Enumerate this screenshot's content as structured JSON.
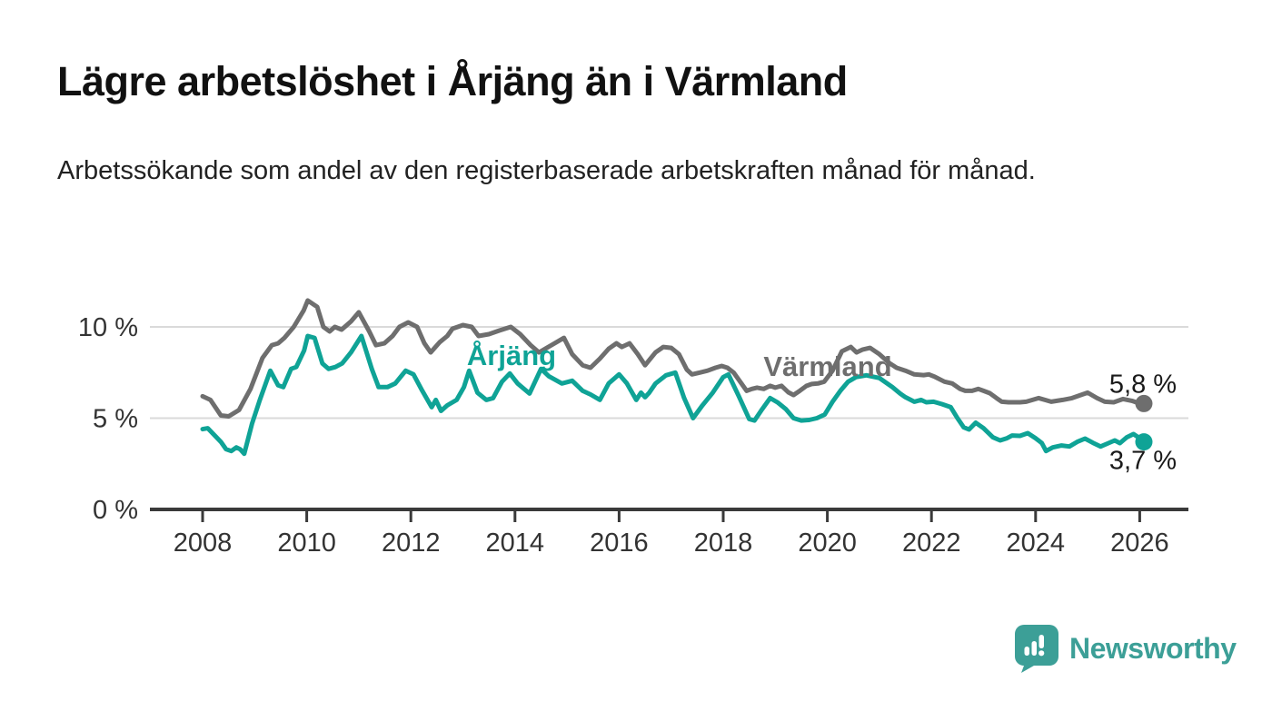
{
  "header": {
    "title": "Lägre arbetslöshet i Årjäng än i Värmland",
    "subtitle": "Arbetssökande som andel av den registerbaserade arbetskraften månad för månad."
  },
  "branding": {
    "logo_text": "Newsworthy",
    "logo_icon": "bar-chart-speech-bubble-icon",
    "brand_color": "#3C9F97"
  },
  "chart_data": {
    "type": "line",
    "title": "Lägre arbetslöshet i Årjäng än i Värmland",
    "subtitle": "Arbetssökande som andel av den registerbaserade arbetskraften månad för månad.",
    "xlabel": "",
    "ylabel": "",
    "x_unit": "year",
    "y_unit": "%",
    "xlim": [
      2007.0,
      2026.9
    ],
    "ylim": [
      0,
      12.2
    ],
    "grid": "horizontal-only",
    "legend_position": "inline-labels",
    "grid_color": "#DADADA",
    "axis_color": "#3A3A3A",
    "tick_text_color": "#333333",
    "x_ticks": [
      2008,
      2010,
      2012,
      2014,
      2016,
      2018,
      2020,
      2022,
      2024,
      2026
    ],
    "y_ticks": [
      {
        "value": 0,
        "label": "0 %"
      },
      {
        "value": 5,
        "label": "5 %"
      },
      {
        "value": 10,
        "label": "10 %"
      }
    ],
    "series": [
      {
        "name": "Värmland",
        "color": "#6E6E6E",
        "end_label": "5,8 %",
        "end_value": 5.8,
        "points": [
          [
            2008.0,
            6.2
          ],
          [
            2008.15,
            6.0
          ],
          [
            2008.35,
            5.15
          ],
          [
            2008.5,
            5.1
          ],
          [
            2008.7,
            5.45
          ],
          [
            2008.92,
            6.6
          ],
          [
            2009.15,
            8.3
          ],
          [
            2009.33,
            9.0
          ],
          [
            2009.45,
            9.1
          ],
          [
            2009.57,
            9.4
          ],
          [
            2009.75,
            10.0
          ],
          [
            2009.94,
            10.9
          ],
          [
            2010.02,
            11.45
          ],
          [
            2010.2,
            11.1
          ],
          [
            2010.32,
            10.0
          ],
          [
            2010.44,
            9.75
          ],
          [
            2010.54,
            10.0
          ],
          [
            2010.67,
            9.85
          ],
          [
            2010.85,
            10.3
          ],
          [
            2011.0,
            10.8
          ],
          [
            2011.2,
            9.75
          ],
          [
            2011.33,
            9.0
          ],
          [
            2011.49,
            9.1
          ],
          [
            2011.65,
            9.5
          ],
          [
            2011.78,
            10.0
          ],
          [
            2011.95,
            10.25
          ],
          [
            2012.12,
            10.0
          ],
          [
            2012.26,
            9.1
          ],
          [
            2012.38,
            8.6
          ],
          [
            2012.55,
            9.15
          ],
          [
            2012.7,
            9.5
          ],
          [
            2012.8,
            9.9
          ],
          [
            2013.0,
            10.1
          ],
          [
            2013.17,
            10.0
          ],
          [
            2013.3,
            9.5
          ],
          [
            2013.5,
            9.6
          ],
          [
            2013.7,
            9.8
          ],
          [
            2013.92,
            10.0
          ],
          [
            2014.1,
            9.6
          ],
          [
            2014.3,
            9.0
          ],
          [
            2014.46,
            8.6
          ],
          [
            2014.7,
            9.0
          ],
          [
            2014.94,
            9.4
          ],
          [
            2015.1,
            8.5
          ],
          [
            2015.3,
            7.9
          ],
          [
            2015.45,
            7.76
          ],
          [
            2015.63,
            8.26
          ],
          [
            2015.8,
            8.8
          ],
          [
            2015.95,
            9.1
          ],
          [
            2016.05,
            8.9
          ],
          [
            2016.2,
            9.1
          ],
          [
            2016.36,
            8.5
          ],
          [
            2016.5,
            7.9
          ],
          [
            2016.7,
            8.6
          ],
          [
            2016.85,
            8.9
          ],
          [
            2017.0,
            8.85
          ],
          [
            2017.15,
            8.5
          ],
          [
            2017.3,
            7.66
          ],
          [
            2017.4,
            7.4
          ],
          [
            2017.55,
            7.5
          ],
          [
            2017.7,
            7.6
          ],
          [
            2017.85,
            7.76
          ],
          [
            2017.97,
            7.86
          ],
          [
            2018.08,
            7.76
          ],
          [
            2018.2,
            7.5
          ],
          [
            2018.3,
            7.1
          ],
          [
            2018.45,
            6.5
          ],
          [
            2018.55,
            6.6
          ],
          [
            2018.65,
            6.67
          ],
          [
            2018.78,
            6.6
          ],
          [
            2018.9,
            6.77
          ],
          [
            2019.0,
            6.67
          ],
          [
            2019.12,
            6.77
          ],
          [
            2019.25,
            6.42
          ],
          [
            2019.35,
            6.27
          ],
          [
            2019.47,
            6.5
          ],
          [
            2019.6,
            6.77
          ],
          [
            2019.7,
            6.87
          ],
          [
            2019.82,
            6.9
          ],
          [
            2019.94,
            7.0
          ],
          [
            2020.1,
            7.6
          ],
          [
            2020.28,
            8.66
          ],
          [
            2020.45,
            8.9
          ],
          [
            2020.56,
            8.6
          ],
          [
            2020.68,
            8.76
          ],
          [
            2020.82,
            8.85
          ],
          [
            2021.0,
            8.5
          ],
          [
            2021.2,
            8.0
          ],
          [
            2021.33,
            7.76
          ],
          [
            2021.5,
            7.6
          ],
          [
            2021.67,
            7.4
          ],
          [
            2021.85,
            7.36
          ],
          [
            2021.95,
            7.4
          ],
          [
            2022.07,
            7.26
          ],
          [
            2022.25,
            7.0
          ],
          [
            2022.4,
            6.9
          ],
          [
            2022.55,
            6.6
          ],
          [
            2022.65,
            6.5
          ],
          [
            2022.78,
            6.5
          ],
          [
            2022.9,
            6.6
          ],
          [
            2023.0,
            6.5
          ],
          [
            2023.12,
            6.37
          ],
          [
            2023.25,
            6.1
          ],
          [
            2023.35,
            5.9
          ],
          [
            2023.48,
            5.87
          ],
          [
            2023.6,
            5.87
          ],
          [
            2023.7,
            5.87
          ],
          [
            2023.82,
            5.9
          ],
          [
            2023.94,
            6.0
          ],
          [
            2024.06,
            6.1
          ],
          [
            2024.18,
            6.0
          ],
          [
            2024.3,
            5.9
          ],
          [
            2024.52,
            6.0
          ],
          [
            2024.7,
            6.1
          ],
          [
            2024.85,
            6.25
          ],
          [
            2025.0,
            6.4
          ],
          [
            2025.18,
            6.1
          ],
          [
            2025.33,
            5.9
          ],
          [
            2025.5,
            5.87
          ],
          [
            2025.68,
            6.05
          ],
          [
            2025.85,
            5.95
          ],
          [
            2026.0,
            5.8
          ],
          [
            2026.08,
            5.8
          ]
        ]
      },
      {
        "name": "Årjäng",
        "color": "#0FA396",
        "end_label": "3,7 %",
        "end_value": 3.7,
        "points": [
          [
            2008.0,
            4.4
          ],
          [
            2008.1,
            4.45
          ],
          [
            2008.35,
            3.7
          ],
          [
            2008.45,
            3.3
          ],
          [
            2008.55,
            3.2
          ],
          [
            2008.65,
            3.4
          ],
          [
            2008.72,
            3.3
          ],
          [
            2008.8,
            3.05
          ],
          [
            2008.95,
            4.7
          ],
          [
            2009.1,
            6.0
          ],
          [
            2009.3,
            7.6
          ],
          [
            2009.45,
            6.8
          ],
          [
            2009.55,
            6.7
          ],
          [
            2009.7,
            7.7
          ],
          [
            2009.8,
            7.8
          ],
          [
            2009.95,
            8.7
          ],
          [
            2010.02,
            9.5
          ],
          [
            2010.15,
            9.4
          ],
          [
            2010.3,
            8.0
          ],
          [
            2010.42,
            7.7
          ],
          [
            2010.55,
            7.8
          ],
          [
            2010.68,
            8.0
          ],
          [
            2010.85,
            8.6
          ],
          [
            2011.05,
            9.5
          ],
          [
            2011.25,
            7.7
          ],
          [
            2011.38,
            6.7
          ],
          [
            2011.55,
            6.7
          ],
          [
            2011.7,
            6.9
          ],
          [
            2011.9,
            7.6
          ],
          [
            2012.05,
            7.4
          ],
          [
            2012.22,
            6.5
          ],
          [
            2012.4,
            5.6
          ],
          [
            2012.48,
            6.0
          ],
          [
            2012.58,
            5.4
          ],
          [
            2012.7,
            5.7
          ],
          [
            2012.88,
            6.0
          ],
          [
            2013.02,
            6.7
          ],
          [
            2013.12,
            7.6
          ],
          [
            2013.28,
            6.4
          ],
          [
            2013.45,
            6.0
          ],
          [
            2013.58,
            6.1
          ],
          [
            2013.75,
            7.0
          ],
          [
            2013.9,
            7.45
          ],
          [
            2014.05,
            6.9
          ],
          [
            2014.28,
            6.35
          ],
          [
            2014.5,
            7.7
          ],
          [
            2014.65,
            7.3
          ],
          [
            2014.9,
            6.9
          ],
          [
            2015.1,
            7.05
          ],
          [
            2015.3,
            6.5
          ],
          [
            2015.45,
            6.3
          ],
          [
            2015.63,
            6.0
          ],
          [
            2015.8,
            6.9
          ],
          [
            2016.0,
            7.4
          ],
          [
            2016.15,
            6.9
          ],
          [
            2016.33,
            6.0
          ],
          [
            2016.42,
            6.4
          ],
          [
            2016.5,
            6.15
          ],
          [
            2016.58,
            6.4
          ],
          [
            2016.7,
            6.9
          ],
          [
            2016.9,
            7.35
          ],
          [
            2017.08,
            7.5
          ],
          [
            2017.25,
            6.1
          ],
          [
            2017.42,
            5.0
          ],
          [
            2017.6,
            5.7
          ],
          [
            2017.8,
            6.4
          ],
          [
            2018.0,
            7.25
          ],
          [
            2018.1,
            7.4
          ],
          [
            2018.3,
            6.2
          ],
          [
            2018.5,
            4.95
          ],
          [
            2018.6,
            4.87
          ],
          [
            2018.75,
            5.5
          ],
          [
            2018.9,
            6.1
          ],
          [
            2019.05,
            5.85
          ],
          [
            2019.2,
            5.5
          ],
          [
            2019.35,
            5.0
          ],
          [
            2019.5,
            4.87
          ],
          [
            2019.65,
            4.9
          ],
          [
            2019.8,
            5.0
          ],
          [
            2019.95,
            5.2
          ],
          [
            2020.1,
            5.9
          ],
          [
            2020.25,
            6.5
          ],
          [
            2020.4,
            7.0
          ],
          [
            2020.55,
            7.25
          ],
          [
            2020.75,
            7.35
          ],
          [
            2021.0,
            7.2
          ],
          [
            2021.25,
            6.7
          ],
          [
            2021.4,
            6.35
          ],
          [
            2021.5,
            6.15
          ],
          [
            2021.67,
            5.9
          ],
          [
            2021.8,
            6.0
          ],
          [
            2021.9,
            5.87
          ],
          [
            2022.04,
            5.9
          ],
          [
            2022.2,
            5.77
          ],
          [
            2022.37,
            5.6
          ],
          [
            2022.5,
            5.0
          ],
          [
            2022.62,
            4.5
          ],
          [
            2022.72,
            4.38
          ],
          [
            2022.85,
            4.75
          ],
          [
            2023.0,
            4.45
          ],
          [
            2023.18,
            3.95
          ],
          [
            2023.32,
            3.78
          ],
          [
            2023.45,
            3.9
          ],
          [
            2023.55,
            4.05
          ],
          [
            2023.7,
            4.03
          ],
          [
            2023.85,
            4.18
          ],
          [
            2024.0,
            3.9
          ],
          [
            2024.12,
            3.63
          ],
          [
            2024.2,
            3.2
          ],
          [
            2024.33,
            3.4
          ],
          [
            2024.5,
            3.5
          ],
          [
            2024.65,
            3.45
          ],
          [
            2024.8,
            3.7
          ],
          [
            2024.95,
            3.88
          ],
          [
            2025.1,
            3.65
          ],
          [
            2025.25,
            3.45
          ],
          [
            2025.4,
            3.63
          ],
          [
            2025.52,
            3.78
          ],
          [
            2025.62,
            3.63
          ],
          [
            2025.75,
            3.95
          ],
          [
            2025.88,
            4.13
          ],
          [
            2026.0,
            3.9
          ],
          [
            2026.08,
            3.7
          ]
        ]
      }
    ]
  }
}
